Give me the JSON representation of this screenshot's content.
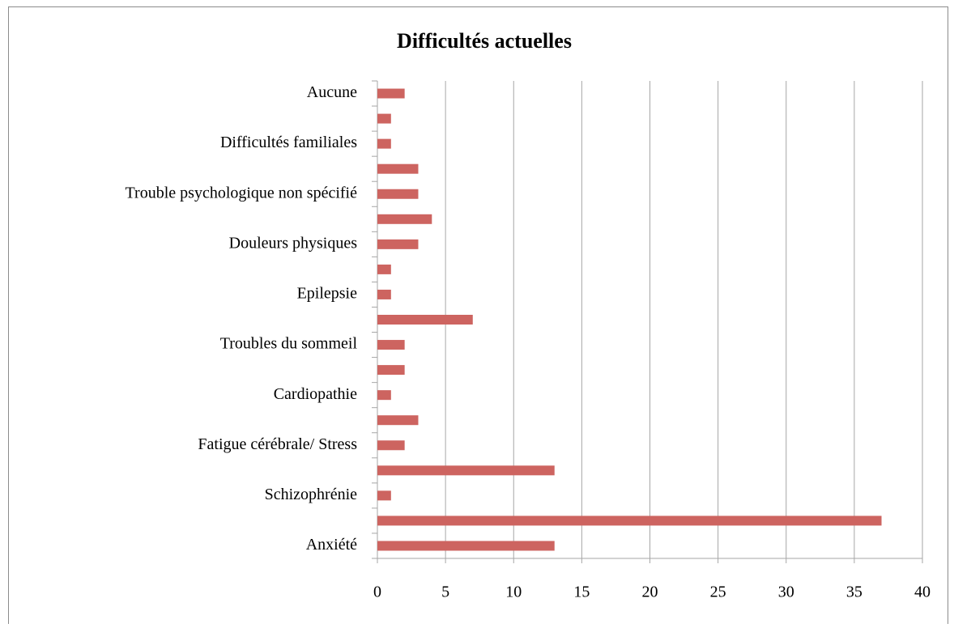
{
  "chart_data": {
    "type": "barh",
    "title": "Difficultés actuelles",
    "categories": [
      "Anxiété",
      null,
      "Schizophrénie",
      null,
      "Fatigue cérébrale/ Stress",
      null,
      "Cardiopathie",
      null,
      "Troubles du sommeil",
      null,
      "Epilepsie",
      null,
      "Douleurs physiques",
      null,
      "Trouble psychologique non spécifié",
      null,
      "Difficultés familiales",
      null,
      "Aucune"
    ],
    "values": [
      13,
      37,
      1,
      13,
      2,
      3,
      1,
      2,
      2,
      7,
      1,
      1,
      3,
      4,
      3,
      3,
      1,
      1,
      2
    ],
    "color": "#cd6460",
    "xlim": [
      0,
      40
    ],
    "xticks": [
      0,
      5,
      10,
      15,
      20,
      25,
      30,
      35,
      40
    ],
    "grid": true
  }
}
